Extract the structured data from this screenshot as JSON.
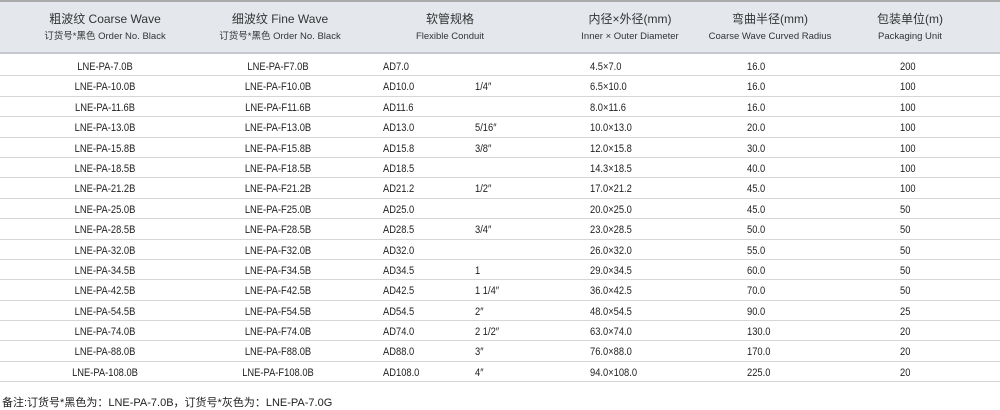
{
  "headers": [
    {
      "cn": "粗波纹 Coarse Wave",
      "en": "订货号*黑色 Order No. Black"
    },
    {
      "cn": "细波纹 Fine Wave",
      "en": "订货号*黑色 Order No. Black"
    },
    {
      "cn": "软管规格",
      "en": "Flexible Conduit"
    },
    {
      "cn": "内径×外径(mm)",
      "en": "Inner × Outer Diameter"
    },
    {
      "cn": "弯曲半径(mm)",
      "en": "Coarse Wave Curved Radius"
    },
    {
      "cn": "包装单位(m)",
      "en": "Packaging Unit"
    }
  ],
  "rows": [
    [
      "LNE-PA-7.0B",
      "LNE-PA-F7.0B",
      "AD7.0",
      "",
      "4.5×7.0",
      "16.0",
      "200"
    ],
    [
      "LNE-PA-10.0B",
      "LNE-PA-F10.0B",
      "AD10.0",
      "1/4″",
      "6.5×10.0",
      "16.0",
      "100"
    ],
    [
      "LNE-PA-11.6B",
      "LNE-PA-F11.6B",
      "AD11.6",
      "",
      "8.0×11.6",
      "16.0",
      "100"
    ],
    [
      "LNE-PA-13.0B",
      "LNE-PA-F13.0B",
      "AD13.0",
      "5/16″",
      "10.0×13.0",
      "20.0",
      "100"
    ],
    [
      "LNE-PA-15.8B",
      "LNE-PA-F15.8B",
      "AD15.8",
      "3/8″",
      "12.0×15.8",
      "30.0",
      "100"
    ],
    [
      "LNE-PA-18.5B",
      "LNE-PA-F18.5B",
      "AD18.5",
      "",
      "14.3×18.5",
      "40.0",
      "100"
    ],
    [
      "LNE-PA-21.2B",
      "LNE-PA-F21.2B",
      "AD21.2",
      "1/2″",
      "17.0×21.2",
      "45.0",
      "100"
    ],
    [
      "LNE-PA-25.0B",
      "LNE-PA-F25.0B",
      "AD25.0",
      "",
      "20.0×25.0",
      "45.0",
      "50"
    ],
    [
      "LNE-PA-28.5B",
      "LNE-PA-F28.5B",
      "AD28.5",
      "3/4″",
      "23.0×28.5",
      "50.0",
      "50"
    ],
    [
      "LNE-PA-32.0B",
      "LNE-PA-F32.0B",
      "AD32.0",
      "",
      "26.0×32.0",
      "55.0",
      "50"
    ],
    [
      "LNE-PA-34.5B",
      "LNE-PA-F34.5B",
      "AD34.5",
      "1",
      "29.0×34.5",
      "60.0",
      "50"
    ],
    [
      "LNE-PA-42.5B",
      "LNE-PA-F42.5B",
      "AD42.5",
      "1 1/4″",
      "36.0×42.5",
      "70.0",
      "50"
    ],
    [
      "LNE-PA-54.5B",
      "LNE-PA-F54.5B",
      "AD54.5",
      "2″",
      "48.0×54.5",
      "90.0",
      "25"
    ],
    [
      "LNE-PA-74.0B",
      "LNE-PA-F74.0B",
      "AD74.0",
      "2 1/2″",
      "63.0×74.0",
      "130.0",
      "20"
    ],
    [
      "LNE-PA-88.0B",
      "LNE-PA-F88.0B",
      "AD88.0",
      "3″",
      "76.0×88.0",
      "170.0",
      "20"
    ],
    [
      "LNE-PA-108.0B",
      "LNE-PA-F108.0B",
      "AD108.0",
      "4″",
      "94.0×108.0",
      "225.0",
      "20"
    ]
  ],
  "note": "备注:订货号*黑色为：LNE-PA-7.0B，订货号*灰色为：LNE-PA-7.0G"
}
